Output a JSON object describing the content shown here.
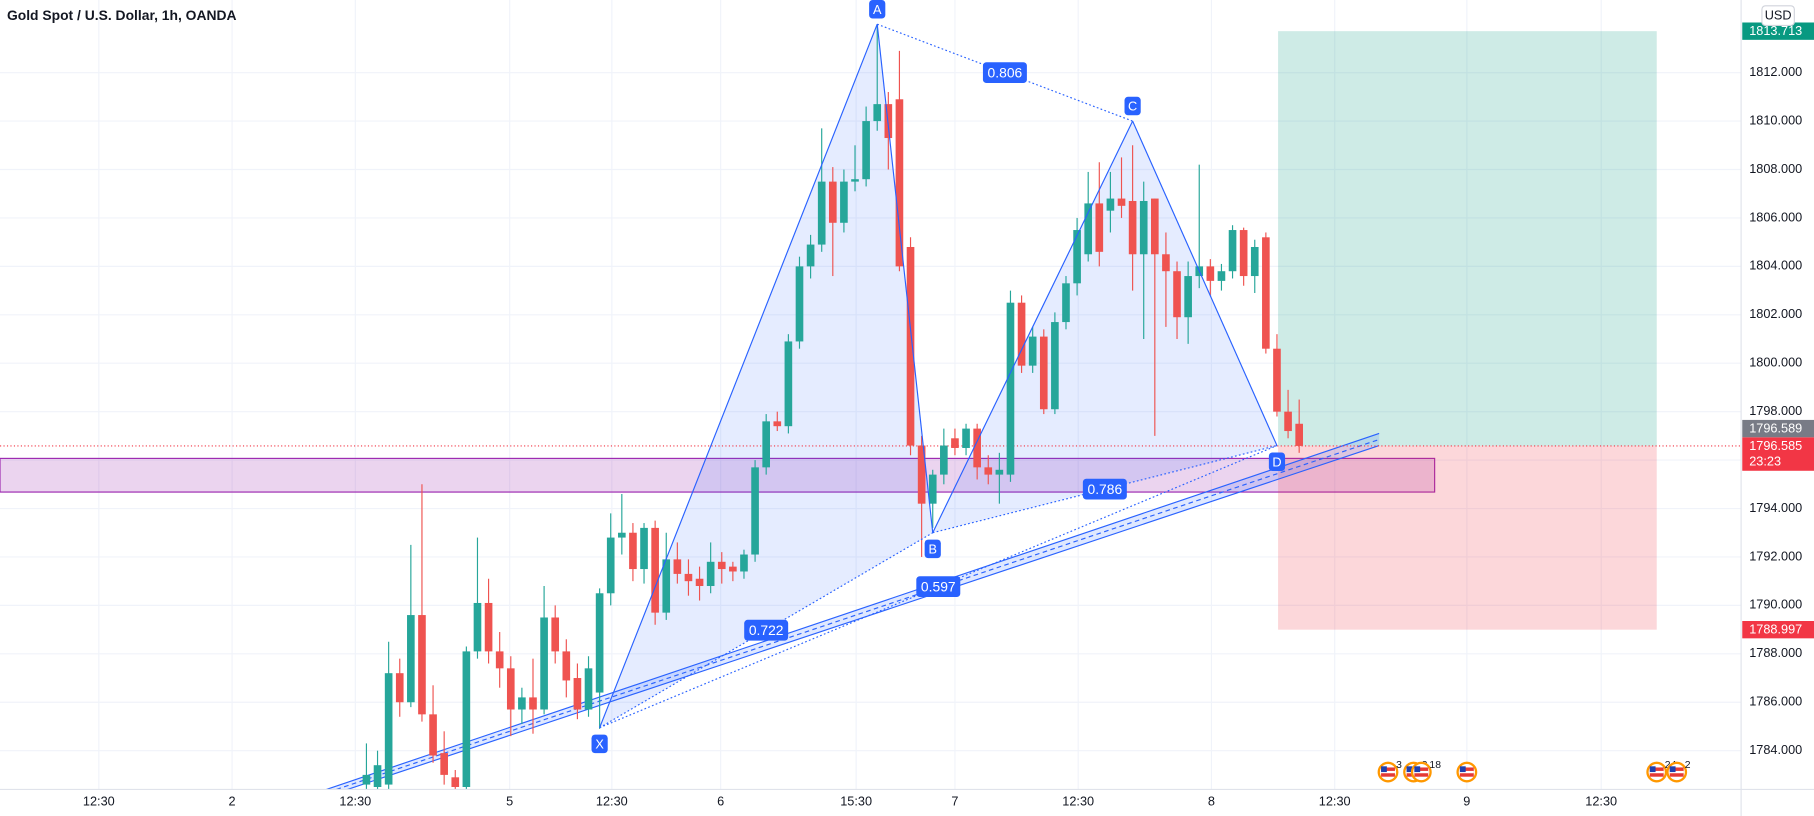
{
  "chart_data": {
    "type": "candlestick",
    "title": "Gold Spot / U.S. Dollar, 1h, OANDA",
    "currency": "USD",
    "up_color": "#26a69a",
    "down_color": "#ef5350",
    "grid": true,
    "xlim": [
      0,
      156.8
    ],
    "ylim": [
      1782.4,
      1815
    ],
    "xticks": [
      {
        "value": 8.9,
        "label": "12:30"
      },
      {
        "value": 20.9,
        "label": "2"
      },
      {
        "value": 32.0,
        "label": "12:30"
      },
      {
        "value": 45.9,
        "label": "5"
      },
      {
        "value": 55.1,
        "label": "12:30"
      },
      {
        "value": 64.9,
        "label": "6"
      },
      {
        "value": 77.1,
        "label": "15:30"
      },
      {
        "value": 86.0,
        "label": "7"
      },
      {
        "value": 97.1,
        "label": "12:30"
      },
      {
        "value": 109.1,
        "label": "8"
      },
      {
        "value": 120.2,
        "label": "12:30"
      },
      {
        "value": 132.1,
        "label": "9"
      },
      {
        "value": 144.2,
        "label": "12:30"
      }
    ],
    "yticks": [
      {
        "value": 1784,
        "label": "1784.000"
      },
      {
        "value": 1786,
        "label": "1786.000"
      },
      {
        "value": 1788,
        "label": "1788.000"
      },
      {
        "value": 1790,
        "label": "1790.000"
      },
      {
        "value": 1792,
        "label": "1792.000"
      },
      {
        "value": 1794,
        "label": "1794.000"
      },
      {
        "value": 1796,
        "label": "1796.000"
      },
      {
        "value": 1798,
        "label": "1798.000"
      },
      {
        "value": 1800,
        "label": "1800.000"
      },
      {
        "value": 1802,
        "label": "1802.000"
      },
      {
        "value": 1804,
        "label": "1804.000"
      },
      {
        "value": 1806,
        "label": "1806.000"
      },
      {
        "value": 1808,
        "label": "1808.000"
      },
      {
        "value": 1810,
        "label": "1810.000"
      },
      {
        "value": 1812,
        "label": "1812.000"
      }
    ],
    "candles": [
      {
        "x": 33,
        "open": 1782.6,
        "high": 1784.3,
        "low": 1782.4,
        "close": 1783.0
      },
      {
        "x": 34,
        "open": 1782.5,
        "high": 1784.0,
        "low": 1782.4,
        "close": 1783.4
      },
      {
        "x": 35,
        "open": 1782.6,
        "high": 1788.5,
        "low": 1782.4,
        "close": 1787.2
      },
      {
        "x": 36,
        "open": 1787.2,
        "high": 1787.8,
        "low": 1785.4,
        "close": 1786.0
      },
      {
        "x": 37,
        "open": 1786.0,
        "high": 1792.5,
        "low": 1785.8,
        "close": 1789.6
      },
      {
        "x": 38,
        "open": 1789.6,
        "high": 1795.0,
        "low": 1785.2,
        "close": 1785.5
      },
      {
        "x": 39,
        "open": 1785.5,
        "high": 1786.7,
        "low": 1783.5,
        "close": 1783.8
      },
      {
        "x": 40,
        "open": 1783.9,
        "high": 1784.8,
        "low": 1782.6,
        "close": 1783.0
      },
      {
        "x": 41,
        "open": 1782.9,
        "high": 1783.2,
        "low": 1782.4,
        "close": 1782.5
      },
      {
        "x": 42,
        "open": 1782.5,
        "high": 1788.3,
        "low": 1782.4,
        "close": 1788.1
      },
      {
        "x": 43,
        "open": 1788.1,
        "high": 1792.8,
        "low": 1787.8,
        "close": 1790.1
      },
      {
        "x": 44,
        "open": 1790.1,
        "high": 1791.1,
        "low": 1787.6,
        "close": 1788.1
      },
      {
        "x": 45,
        "open": 1788.1,
        "high": 1788.9,
        "low": 1786.6,
        "close": 1787.4
      },
      {
        "x": 46,
        "open": 1787.4,
        "high": 1787.9,
        "low": 1784.6,
        "close": 1785.7
      },
      {
        "x": 47,
        "open": 1785.7,
        "high": 1786.6,
        "low": 1785.1,
        "close": 1786.2
      },
      {
        "x": 48,
        "open": 1786.2,
        "high": 1787.8,
        "low": 1784.7,
        "close": 1785.7
      },
      {
        "x": 49,
        "open": 1785.7,
        "high": 1790.8,
        "low": 1785.5,
        "close": 1789.5
      },
      {
        "x": 50,
        "open": 1789.5,
        "high": 1790.0,
        "low": 1787.6,
        "close": 1788.1
      },
      {
        "x": 51,
        "open": 1788.1,
        "high": 1788.6,
        "low": 1786.2,
        "close": 1786.9
      },
      {
        "x": 52,
        "open": 1787.0,
        "high": 1787.6,
        "low": 1785.3,
        "close": 1785.7
      },
      {
        "x": 53,
        "open": 1785.7,
        "high": 1787.9,
        "low": 1785.4,
        "close": 1787.4
      },
      {
        "x": 54,
        "open": 1786.4,
        "high": 1790.7,
        "low": 1784.9,
        "close": 1790.5
      },
      {
        "x": 55,
        "open": 1790.5,
        "high": 1793.8,
        "low": 1790.0,
        "close": 1792.8
      },
      {
        "x": 56,
        "open": 1792.8,
        "high": 1794.6,
        "low": 1792.1,
        "close": 1793.0
      },
      {
        "x": 57,
        "open": 1793.0,
        "high": 1793.4,
        "low": 1791.0,
        "close": 1791.5
      },
      {
        "x": 58,
        "open": 1791.5,
        "high": 1793.4,
        "low": 1790.9,
        "close": 1793.2
      },
      {
        "x": 59,
        "open": 1793.2,
        "high": 1793.5,
        "low": 1789.2,
        "close": 1789.7
      },
      {
        "x": 60,
        "open": 1789.7,
        "high": 1793.0,
        "low": 1789.4,
        "close": 1791.9
      },
      {
        "x": 61,
        "open": 1791.9,
        "high": 1792.6,
        "low": 1790.9,
        "close": 1791.3
      },
      {
        "x": 62,
        "open": 1791.3,
        "high": 1791.9,
        "low": 1790.4,
        "close": 1791.0
      },
      {
        "x": 63,
        "open": 1791.1,
        "high": 1791.6,
        "low": 1790.2,
        "close": 1790.8
      },
      {
        "x": 64,
        "open": 1790.8,
        "high": 1792.6,
        "low": 1790.5,
        "close": 1791.8
      },
      {
        "x": 65,
        "open": 1791.8,
        "high": 1792.2,
        "low": 1790.9,
        "close": 1791.5
      },
      {
        "x": 66,
        "open": 1791.6,
        "high": 1791.8,
        "low": 1791.0,
        "close": 1791.4
      },
      {
        "x": 67,
        "open": 1791.4,
        "high": 1792.3,
        "low": 1791.1,
        "close": 1792.1
      },
      {
        "x": 68,
        "open": 1792.1,
        "high": 1796.0,
        "low": 1791.8,
        "close": 1795.7
      },
      {
        "x": 69,
        "open": 1795.7,
        "high": 1797.9,
        "low": 1795.4,
        "close": 1797.6
      },
      {
        "x": 70,
        "open": 1797.6,
        "high": 1798.0,
        "low": 1797.2,
        "close": 1797.4
      },
      {
        "x": 71,
        "open": 1797.4,
        "high": 1801.2,
        "low": 1797.1,
        "close": 1800.9
      },
      {
        "x": 72,
        "open": 1800.9,
        "high": 1804.4,
        "low": 1800.6,
        "close": 1804.0
      },
      {
        "x": 73,
        "open": 1804.0,
        "high": 1805.3,
        "low": 1803.5,
        "close": 1804.9
      },
      {
        "x": 74,
        "open": 1804.9,
        "high": 1809.7,
        "low": 1804.6,
        "close": 1807.5
      },
      {
        "x": 75,
        "open": 1807.5,
        "high": 1808.1,
        "low": 1803.6,
        "close": 1805.8
      },
      {
        "x": 76,
        "open": 1805.8,
        "high": 1808.0,
        "low": 1805.4,
        "close": 1807.5
      },
      {
        "x": 77,
        "open": 1807.5,
        "high": 1809.0,
        "low": 1807.1,
        "close": 1807.6
      },
      {
        "x": 78,
        "open": 1807.6,
        "high": 1810.6,
        "low": 1807.3,
        "close": 1810.0
      },
      {
        "x": 79,
        "open": 1810.0,
        "high": 1814.0,
        "low": 1809.6,
        "close": 1810.7
      },
      {
        "x": 80,
        "open": 1810.7,
        "high": 1811.2,
        "low": 1808.0,
        "close": 1809.3
      },
      {
        "x": 81,
        "open": 1810.9,
        "high": 1812.9,
        "low": 1803.8,
        "close": 1804.0
      },
      {
        "x": 82,
        "open": 1804.8,
        "high": 1805.2,
        "low": 1796.2,
        "close": 1796.6
      },
      {
        "x": 83,
        "open": 1796.6,
        "high": 1797.0,
        "low": 1792.0,
        "close": 1794.2
      },
      {
        "x": 84,
        "open": 1794.2,
        "high": 1795.6,
        "low": 1793.2,
        "close": 1795.4
      },
      {
        "x": 85,
        "open": 1795.4,
        "high": 1797.3,
        "low": 1795.0,
        "close": 1796.6
      },
      {
        "x": 86,
        "open": 1796.9,
        "high": 1797.3,
        "low": 1796.2,
        "close": 1796.5
      },
      {
        "x": 87,
        "open": 1796.5,
        "high": 1797.5,
        "low": 1796.2,
        "close": 1797.3
      },
      {
        "x": 88,
        "open": 1797.3,
        "high": 1797.5,
        "low": 1795.2,
        "close": 1795.7
      },
      {
        "x": 89,
        "open": 1795.7,
        "high": 1796.2,
        "low": 1795.0,
        "close": 1795.4
      },
      {
        "x": 90,
        "open": 1795.4,
        "high": 1796.3,
        "low": 1794.2,
        "close": 1795.6
      },
      {
        "x": 91,
        "open": 1795.4,
        "high": 1803.0,
        "low": 1795.1,
        "close": 1802.5
      },
      {
        "x": 92,
        "open": 1802.5,
        "high": 1802.8,
        "low": 1799.6,
        "close": 1799.9
      },
      {
        "x": 93,
        "open": 1799.9,
        "high": 1801.5,
        "low": 1799.6,
        "close": 1801.1
      },
      {
        "x": 94,
        "open": 1801.1,
        "high": 1801.4,
        "low": 1797.9,
        "close": 1798.1
      },
      {
        "x": 95,
        "open": 1798.1,
        "high": 1802.1,
        "low": 1797.9,
        "close": 1801.7
      },
      {
        "x": 96,
        "open": 1801.7,
        "high": 1803.6,
        "low": 1801.4,
        "close": 1803.3
      },
      {
        "x": 97,
        "open": 1803.3,
        "high": 1806.0,
        "low": 1802.8,
        "close": 1805.5
      },
      {
        "x": 98,
        "open": 1804.5,
        "high": 1807.9,
        "low": 1804.2,
        "close": 1806.6
      },
      {
        "x": 99,
        "open": 1806.6,
        "high": 1808.3,
        "low": 1804.0,
        "close": 1804.6
      },
      {
        "x": 100,
        "open": 1806.3,
        "high": 1807.9,
        "low": 1805.4,
        "close": 1806.8
      },
      {
        "x": 101,
        "open": 1806.8,
        "high": 1808.5,
        "low": 1806.0,
        "close": 1806.5
      },
      {
        "x": 102,
        "open": 1806.7,
        "high": 1809.0,
        "low": 1803.0,
        "close": 1804.5
      },
      {
        "x": 103,
        "open": 1804.5,
        "high": 1807.5,
        "low": 1801.0,
        "close": 1806.7
      },
      {
        "x": 104,
        "open": 1806.8,
        "high": 1806.8,
        "low": 1797.0,
        "close": 1804.5
      },
      {
        "x": 105,
        "open": 1804.5,
        "high": 1805.4,
        "low": 1801.5,
        "close": 1803.8
      },
      {
        "x": 106,
        "open": 1803.8,
        "high": 1804.2,
        "low": 1801.0,
        "close": 1801.9
      },
      {
        "x": 107,
        "open": 1801.9,
        "high": 1804.2,
        "low": 1800.8,
        "close": 1803.6
      },
      {
        "x": 108,
        "open": 1803.6,
        "high": 1808.2,
        "low": 1803.1,
        "close": 1804.0
      },
      {
        "x": 109,
        "open": 1804.0,
        "high": 1804.3,
        "low": 1802.8,
        "close": 1803.4
      },
      {
        "x": 110,
        "open": 1803.4,
        "high": 1804.1,
        "low": 1803.0,
        "close": 1803.8
      },
      {
        "x": 111,
        "open": 1803.8,
        "high": 1805.7,
        "low": 1803.5,
        "close": 1805.5
      },
      {
        "x": 112,
        "open": 1805.5,
        "high": 1805.6,
        "low": 1803.2,
        "close": 1803.6
      },
      {
        "x": 113,
        "open": 1803.6,
        "high": 1805.1,
        "low": 1802.9,
        "close": 1804.8
      },
      {
        "x": 114,
        "open": 1805.2,
        "high": 1805.4,
        "low": 1800.4,
        "close": 1800.6
      },
      {
        "x": 115,
        "open": 1800.6,
        "high": 1801.2,
        "low": 1797.8,
        "close": 1798.0
      },
      {
        "x": 116,
        "open": 1798.0,
        "high": 1798.9,
        "low": 1796.9,
        "close": 1797.2
      },
      {
        "x": 117,
        "open": 1797.5,
        "high": 1798.5,
        "low": 1796.3,
        "close": 1796.585
      }
    ],
    "pattern": {
      "color": "#2962ff",
      "points": [
        {
          "name": "X",
          "x": 54,
          "price": 1784.95
        },
        {
          "name": "A",
          "x": 79,
          "price": 1814.0
        },
        {
          "name": "B",
          "x": 84,
          "price": 1793.0
        },
        {
          "name": "C",
          "x": 102,
          "price": 1810.0
        },
        {
          "name": "D",
          "x": 115,
          "price": 1796.6
        }
      ],
      "ratios": [
        {
          "from": "A",
          "to": "C",
          "value": 0.806
        },
        {
          "from": "X",
          "to": "B",
          "value": 0.722
        },
        {
          "from": "X",
          "to": "D",
          "value": 0.597
        },
        {
          "from": "B",
          "to": "D",
          "value": 0.786
        }
      ]
    },
    "channel": {
      "color": "#2962ff",
      "lines": [
        [
          29.4,
          1782.4,
          124.2,
          1797.1
        ],
        [
          30.3,
          1782.4,
          124.2,
          1796.85
        ],
        [
          31.3,
          1782.4,
          124.2,
          1796.6
        ]
      ]
    },
    "zone": {
      "x_start": 0,
      "x_end": 129.2,
      "top": 1796.07,
      "bottom": 1794.68,
      "color": "#9c27b0"
    },
    "position": {
      "x_start": 115.1,
      "x_end": 149.2,
      "entry": 1796.585,
      "target": 1813.713,
      "stop": 1788.997
    },
    "price_tags": [
      {
        "value": 1813.713,
        "color": "#089981"
      },
      {
        "value": 1796.589,
        "color": "#787b86"
      },
      {
        "value": 1796.585,
        "color": "#f23645",
        "countdown": "23:23"
      },
      {
        "value": 1788.997,
        "color": "#f23645"
      }
    ],
    "events": [
      {
        "x": 125.0,
        "badge": "3"
      },
      {
        "x": 127.3,
        "badge": "2"
      },
      {
        "x": 128.0,
        "badge": "18"
      },
      {
        "x": 132.1
      },
      {
        "x": 149.2,
        "badge": "24"
      },
      {
        "x": 151.0,
        "badge": "2"
      }
    ]
  }
}
